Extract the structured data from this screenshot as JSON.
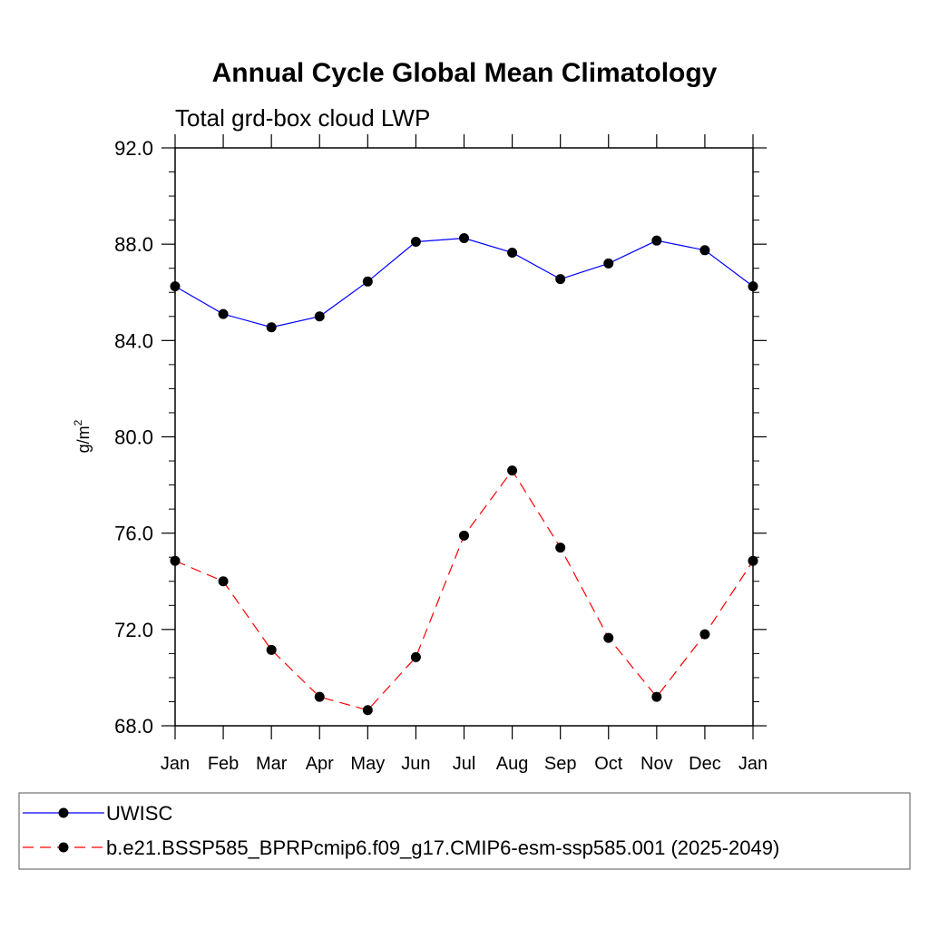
{
  "chart_data": {
    "type": "line",
    "title": "Annual Cycle Global Mean Climatology",
    "subtitle": "Total grd-box cloud LWP",
    "ylabel_base": "g/m",
    "ylabel_sup": "2",
    "xlabel": "",
    "categories": [
      "Jan",
      "Feb",
      "Mar",
      "Apr",
      "May",
      "Jun",
      "Jul",
      "Aug",
      "Sep",
      "Oct",
      "Nov",
      "Dec",
      "Jan"
    ],
    "ylim": [
      68.0,
      92.0
    ],
    "yticks": [
      68.0,
      72.0,
      76.0,
      80.0,
      84.0,
      88.0,
      92.0
    ],
    "ytick_labels": [
      "68.0",
      "72.0",
      "76.0",
      "80.0",
      "84.0",
      "88.0",
      "92.0"
    ],
    "yminor_step": 1.0,
    "series": [
      {
        "name": "UWISC",
        "color": "#0000ff",
        "dash": "solid",
        "values": [
          86.25,
          85.1,
          84.55,
          85.0,
          86.45,
          88.1,
          88.25,
          87.65,
          86.55,
          87.2,
          88.15,
          87.75,
          86.25
        ]
      },
      {
        "name": "b.e21.BSSP585_BPRPcmip6.f09_g17.CMIP6-esm-ssp585.001 (2025-2049)",
        "color": "#ff0000",
        "dash": "dashed",
        "values": [
          74.85,
          74.0,
          71.15,
          69.2,
          68.65,
          70.85,
          75.9,
          78.6,
          75.4,
          71.65,
          69.2,
          71.8,
          74.85
        ]
      }
    ],
    "legend_position": "bottom",
    "marker": "filled-circle",
    "grid": false
  }
}
